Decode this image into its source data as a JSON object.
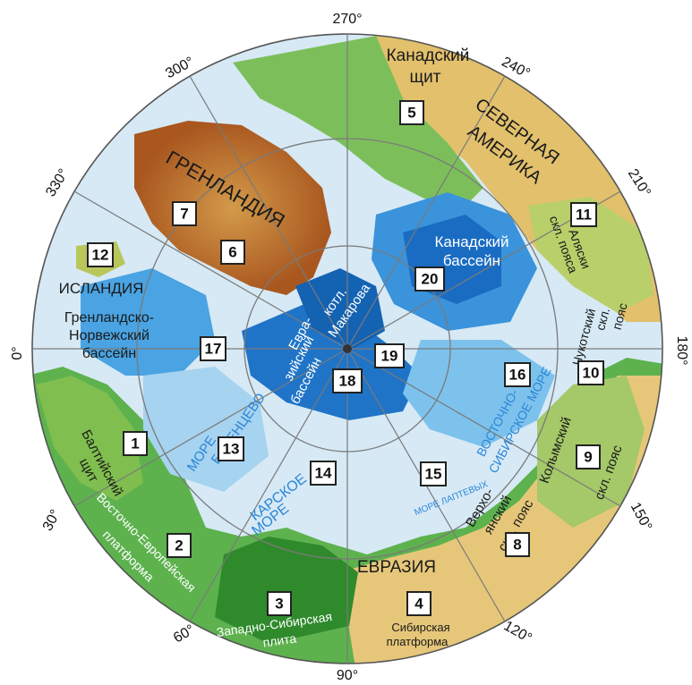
{
  "degrees": {
    "d270": "270°",
    "d240": "240°",
    "d300": "300°",
    "d330": "330°",
    "d210": "210°",
    "d0": "0°",
    "d180": "180°",
    "d30": "30°",
    "d150": "150°",
    "d60": "60°",
    "d120": "120°",
    "d90": "90°"
  },
  "regions": {
    "canadian_shield": [
      "Канадский",
      "щит"
    ],
    "north_america": [
      "СЕВЕРНАЯ",
      "АМЕРИКА"
    ],
    "greenland": "ГРЕНЛАНДИЯ",
    "iceland": "ИСЛАНДИЯ",
    "greenland_norway_basin": [
      "Гренландско-",
      "Норвежский",
      "бассейн"
    ],
    "canada_basin": [
      "Канадский",
      "бассейн"
    ],
    "makarov": [
      "котл.",
      "Макарова"
    ],
    "eurasian_basin": [
      "Евра-",
      "зийский",
      "бассейн"
    ],
    "alaska_belt": [
      "скл. пояса",
      "Аляски"
    ],
    "chukotka_belt": [
      "Чукотский",
      "скл.",
      "пояс"
    ],
    "east_siberian_sea": [
      "ВОСТОЧНО-",
      "СИБИРСКОЕ МОРЕ"
    ],
    "kolyma_belt": [
      "Колымский",
      "скл. пояс"
    ],
    "verkhoyansk_belt": [
      "Верхо-",
      "янский",
      "скл. пояс"
    ],
    "laptev_sea": "МОРЕ ЛАПТЕВЫХ",
    "barents_sea": [
      "БАРЕНЦЕВО",
      "МОРЕ"
    ],
    "kara_sea": [
      "КАРСКОЕ",
      "МОРЕ"
    ],
    "baltic_shield": [
      "Балтийский",
      "щит"
    ],
    "east_european_platform": [
      "Восточно-Европейская",
      "платформа"
    ],
    "west_siberian_plate": [
      "Западно-Сибирская",
      "плита"
    ],
    "eurasia": "ЕВРАЗИЯ",
    "siberian_platform": [
      "Сибирская",
      "платформа"
    ]
  },
  "markers": [
    "1",
    "2",
    "3",
    "4",
    "5",
    "6",
    "7",
    "8",
    "9",
    "10",
    "11",
    "12",
    "13",
    "14",
    "15",
    "16",
    "17",
    "18",
    "19",
    "20"
  ],
  "colors": {
    "ocean_light": "#cfe4f3",
    "ocean_mid": "#5fb3e8",
    "ocean_deep": "#0b5fb0",
    "land_green": "#3fa13a",
    "land_yellow": "#e8c878",
    "greenland_brown": "#b86a2c",
    "grid": "#777777"
  }
}
